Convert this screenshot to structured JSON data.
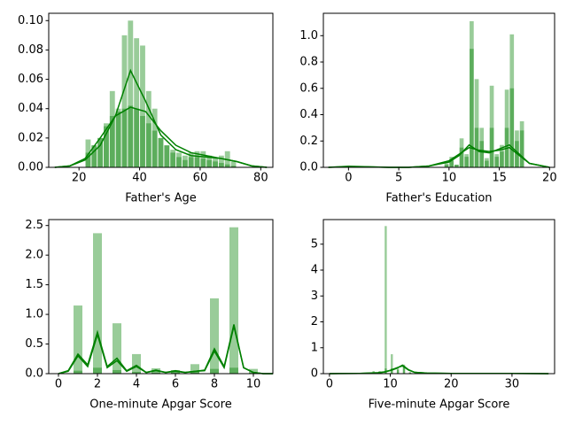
{
  "chart_data": [
    {
      "type": "histogram",
      "xlabel": "Father's Age",
      "xlim": [
        10,
        84
      ],
      "xticks": [
        20,
        40,
        60,
        80
      ],
      "ylim": [
        0,
        0.105
      ],
      "yticks": [
        {
          "value": 0,
          "label": "0.00"
        },
        {
          "value": 0.02,
          "label": "0.02"
        },
        {
          "value": 0.04,
          "label": "0.04"
        },
        {
          "value": 0.06,
          "label": "0.06"
        },
        {
          "value": 0.08,
          "label": "0.08"
        },
        {
          "value": 0.1,
          "label": "0.10"
        }
      ],
      "bins": [
        22,
        24,
        26,
        28,
        30,
        32,
        34,
        36,
        38,
        40,
        42,
        44,
        46,
        48,
        50,
        52,
        54,
        56,
        58,
        60,
        62,
        64,
        66,
        68,
        70,
        72
      ],
      "series": [
        {
          "color": "#008000",
          "values": [
            0.019,
            0.015,
            0.02,
            0.03,
            0.052,
            0.04,
            0.09,
            0.1,
            0.088,
            0.083,
            0.052,
            0.04,
            0.02,
            0.015,
            0.01,
            0.007,
            0.005,
            0.01,
            0.011,
            0.011,
            0.008,
            0.006,
            0.008,
            0.011,
            0.004
          ]
        },
        {
          "color": "#008000",
          "values": [
            0.01,
            0.015,
            0.02,
            0.028,
            0.035,
            0.038,
            0.04,
            0.042,
            0.04,
            0.035,
            0.03,
            0.025,
            0.02,
            0.015,
            0.012,
            0.01,
            0.008,
            0.007,
            0.007,
            0.006,
            0.005,
            0.004,
            0.003,
            0.002,
            0.001
          ]
        }
      ],
      "kde_x": [
        12,
        17,
        22,
        27,
        32,
        37,
        42,
        47,
        52,
        57,
        62,
        67,
        72,
        77,
        82
      ],
      "kde": [
        {
          "color": "#008000",
          "values": [
            0,
            0.001,
            0.005,
            0.015,
            0.035,
            0.066,
            0.045,
            0.022,
            0.012,
            0.008,
            0.007,
            0.006,
            0.004,
            0.001,
            0
          ]
        },
        {
          "color": "#008000",
          "values": [
            0,
            0.001,
            0.006,
            0.02,
            0.035,
            0.041,
            0.038,
            0.025,
            0.015,
            0.01,
            0.008,
            0.006,
            0.004,
            0.001,
            0
          ]
        }
      ]
    },
    {
      "type": "histogram",
      "xlabel": "Father's Education",
      "xlim": [
        -2.5,
        20.5
      ],
      "xticks": [
        0,
        5,
        10,
        15,
        20
      ],
      "ylim": [
        0,
        1.17
      ],
      "yticks": [
        {
          "value": 0,
          "label": "0.0"
        },
        0.2,
        0.4,
        0.6,
        0.8,
        {
          "value": 1,
          "label": "1.0"
        }
      ],
      "bins": [
        9,
        9.5,
        10,
        10.5,
        11,
        11.5,
        12,
        12.5,
        13,
        13.5,
        14,
        14.5,
        15,
        15.5,
        16,
        16.5,
        17,
        17.5
      ],
      "series": [
        {
          "color": "#008000",
          "values": [
            0,
            0.03,
            0.08,
            0.02,
            0.22,
            0.1,
            1.11,
            0.67,
            0.3,
            0.07,
            0.62,
            0.1,
            0.17,
            0.59,
            1.01,
            0.28,
            0.35
          ]
        },
        {
          "color": "#008000",
          "values": [
            0,
            0.02,
            0.05,
            0.02,
            0.15,
            0.08,
            0.9,
            0.3,
            0.2,
            0.05,
            0.3,
            0.08,
            0.12,
            0.3,
            0.6,
            0.2,
            0.28
          ]
        }
      ],
      "kde_x": [
        -2,
        0,
        2,
        4,
        6,
        8,
        10,
        11,
        12,
        13,
        14,
        15,
        16,
        17,
        18,
        20
      ],
      "kde": [
        {
          "color": "#008000",
          "values": [
            0,
            0.005,
            0.003,
            0,
            0,
            0.01,
            0.04,
            0.09,
            0.17,
            0.12,
            0.11,
            0.14,
            0.17,
            0.1,
            0.03,
            0
          ]
        },
        {
          "color": "#008000",
          "values": [
            0,
            0.008,
            0.004,
            0,
            0,
            0.01,
            0.05,
            0.1,
            0.15,
            0.13,
            0.12,
            0.13,
            0.15,
            0.09,
            0.03,
            0
          ]
        }
      ]
    },
    {
      "type": "histogram",
      "xlabel": "One-minute Apgar Score",
      "xlim": [
        -0.5,
        11
      ],
      "xticks": [
        0,
        2,
        4,
        6,
        8,
        10
      ],
      "ylim": [
        0,
        2.6
      ],
      "yticks": [
        {
          "value": 0,
          "label": "0.0"
        },
        0.5,
        {
          "value": 1,
          "label": "1.0"
        },
        1.5,
        {
          "value": 2,
          "label": "2.0"
        },
        2.5
      ],
      "bins": [
        0.75,
        1.25,
        1.75,
        2.25,
        2.75,
        3.25,
        3.75,
        4.25,
        4.75,
        5.25,
        5.75,
        6.25,
        6.75,
        7.25,
        7.75,
        8.25,
        8.75,
        9.25,
        9.75,
        10.25
      ],
      "series": [
        {
          "color": "#008000",
          "values": [
            1.15,
            0,
            2.37,
            0,
            0.85,
            0,
            0.33,
            0,
            0.09,
            0,
            0.06,
            0,
            0.16,
            0,
            1.27,
            0,
            2.47,
            0,
            0.08
          ]
        },
        {
          "color": "#008000",
          "values": [
            0.05,
            0,
            0.1,
            0,
            0.06,
            0,
            0.03,
            0,
            0.02,
            0,
            0.02,
            0,
            0.04,
            0,
            0.08,
            0,
            0.1,
            0,
            0.02
          ]
        }
      ],
      "kde_x": [
        0,
        0.5,
        1,
        1.5,
        2,
        2.5,
        3,
        3.5,
        4,
        4.5,
        5,
        5.5,
        6,
        6.5,
        7,
        7.5,
        8,
        8.5,
        9,
        9.5,
        10,
        10.5,
        11
      ],
      "kde": [
        {
          "color": "#008000",
          "values": [
            0,
            0.05,
            0.33,
            0.15,
            0.7,
            0.12,
            0.26,
            0.05,
            0.14,
            0.02,
            0.06,
            0.02,
            0.05,
            0.02,
            0.04,
            0.06,
            0.42,
            0.12,
            0.83,
            0.1,
            0.02,
            0,
            0
          ]
        },
        {
          "color": "#008000",
          "values": [
            0,
            0.04,
            0.3,
            0.12,
            0.66,
            0.1,
            0.22,
            0.04,
            0.12,
            0.02,
            0.05,
            0.02,
            0.04,
            0.02,
            0.04,
            0.05,
            0.38,
            0.1,
            0.8,
            0.1,
            0.02,
            0,
            0
          ]
        }
      ]
    },
    {
      "type": "histogram",
      "xlabel": "Five-minute Apgar Score",
      "xlim": [
        -1,
        37
      ],
      "xticks": [
        0,
        10,
        20,
        30
      ],
      "ylim": [
        0,
        5.95
      ],
      "yticks": [
        0,
        1,
        2,
        3,
        4,
        5
      ],
      "bins": [
        7,
        7.5,
        8,
        8.5,
        9,
        9.5,
        10,
        10.5,
        11,
        11.5,
        12,
        12.5,
        13,
        13.5,
        14
      ],
      "series": [
        {
          "color": "#008000",
          "values": [
            0.1,
            0,
            0.1,
            0,
            5.7,
            0,
            0.75,
            0,
            0.2,
            0,
            0.35,
            0,
            0.05,
            0
          ]
        },
        {
          "color": "#008000",
          "values": [
            0.05,
            0,
            0.05,
            0,
            0.2,
            0,
            0.2,
            0,
            0.15,
            0,
            0.3,
            0,
            0.05,
            0
          ]
        }
      ],
      "kde_x": [
        0,
        5,
        8,
        9,
        10,
        11,
        12,
        13,
        14,
        16,
        20,
        30,
        36
      ],
      "kde": [
        {
          "color": "#008000",
          "values": [
            0,
            0.01,
            0.03,
            0.06,
            0.12,
            0.2,
            0.33,
            0.15,
            0.05,
            0.02,
            0.01,
            0.01,
            0
          ]
        },
        {
          "color": "#008000",
          "values": [
            0,
            0.01,
            0.04,
            0.07,
            0.13,
            0.22,
            0.3,
            0.14,
            0.05,
            0.02,
            0.01,
            0.01,
            0
          ]
        }
      ]
    }
  ]
}
